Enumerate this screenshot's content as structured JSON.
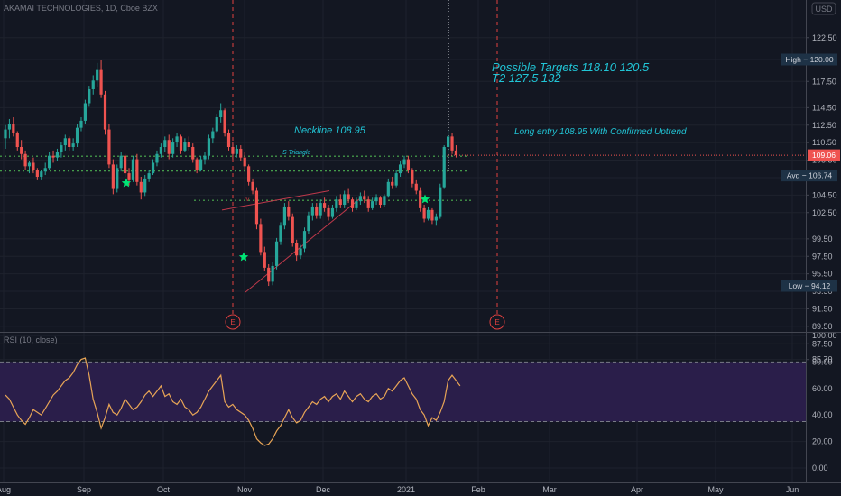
{
  "header": {
    "symbol": "AKAMAI TECHNOLOGIES, 1D, Cboe BZX",
    "currency_button": "USD"
  },
  "colors": {
    "background": "#131722",
    "grid": "#1e222d",
    "up": "#26a69a",
    "down": "#ef5350",
    "annotation": "#21c5d6",
    "dotted_line": "#4caf50",
    "star": "#00e676",
    "rsi_line": "#e8a556",
    "rsi_band": "#2a1e4a",
    "earnings": "#e04040"
  },
  "chart_data": [
    {
      "type": "candlestick",
      "y_ticks": [
        "122.50",
        "120.00",
        "117.50",
        "114.50",
        "112.50",
        "110.50",
        "108.50",
        "106.50",
        "104.50",
        "102.50",
        "99.50",
        "97.50",
        "95.50",
        "93.50",
        "91.50",
        "89.50",
        "87.50",
        "85.70"
      ],
      "x_ticks": [
        "Aug",
        "Sep",
        "Oct",
        "Nov",
        "Dec",
        "2021",
        "Feb",
        "Mar",
        "Apr",
        "May",
        "Jun"
      ],
      "ylim": [
        85.7,
        124.0
      ],
      "price_labels": {
        "high": {
          "label": "High",
          "value": "120.00"
        },
        "current": {
          "value": "109.06"
        },
        "avg": {
          "label": "Avg",
          "value": "106.74"
        },
        "low": {
          "label": "Low",
          "value": "94.12"
        }
      },
      "candles": [
        [
          111.0,
          112.5,
          109.8,
          112.0
        ],
        [
          112.0,
          113.2,
          111.0,
          112.6
        ],
        [
          112.6,
          113.4,
          111.2,
          111.6
        ],
        [
          111.6,
          111.8,
          109.6,
          110.0
        ],
        [
          110.0,
          110.8,
          108.6,
          109.2
        ],
        [
          109.2,
          109.6,
          107.4,
          107.8
        ],
        [
          107.8,
          108.4,
          107.0,
          108.2
        ],
        [
          108.2,
          108.8,
          107.0,
          107.4
        ],
        [
          107.4,
          107.6,
          106.2,
          106.6
        ],
        [
          106.6,
          107.4,
          106.2,
          107.2
        ],
        [
          107.2,
          108.2,
          106.8,
          107.6
        ],
        [
          107.6,
          109.4,
          107.4,
          109.0
        ],
        [
          109.0,
          109.6,
          108.2,
          108.8
        ],
        [
          108.8,
          109.8,
          108.4,
          109.4
        ],
        [
          109.4,
          110.6,
          108.8,
          110.2
        ],
        [
          110.2,
          111.4,
          109.6,
          111.0
        ],
        [
          111.0,
          111.2,
          109.6,
          110.0
        ],
        [
          110.0,
          111.0,
          109.6,
          110.4
        ],
        [
          110.4,
          112.6,
          110.0,
          112.2
        ],
        [
          112.2,
          113.4,
          111.8,
          113.0
        ],
        [
          113.0,
          115.4,
          112.6,
          115.0
        ],
        [
          115.0,
          117.0,
          114.6,
          116.6
        ],
        [
          116.6,
          118.2,
          116.0,
          117.6
        ],
        [
          117.6,
          119.6,
          116.8,
          118.8
        ],
        [
          118.8,
          120.0,
          115.6,
          116.0
        ],
        [
          116.0,
          116.4,
          111.4,
          112.0
        ],
        [
          112.0,
          112.6,
          107.6,
          108.0
        ],
        [
          108.0,
          108.6,
          104.6,
          105.2
        ],
        [
          105.2,
          108.0,
          104.8,
          107.6
        ],
        [
          107.6,
          109.4,
          107.2,
          109.0
        ],
        [
          109.0,
          109.2,
          106.6,
          107.0
        ],
        [
          107.0,
          107.6,
          105.6,
          106.2
        ],
        [
          106.2,
          109.0,
          106.0,
          108.6
        ],
        [
          108.6,
          109.2,
          105.6,
          106.0
        ],
        [
          106.0,
          106.6,
          104.0,
          104.8
        ],
        [
          104.8,
          106.8,
          104.4,
          106.4
        ],
        [
          106.4,
          107.4,
          106.0,
          107.0
        ],
        [
          107.0,
          108.6,
          106.8,
          108.2
        ],
        [
          108.2,
          109.6,
          107.8,
          109.2
        ],
        [
          109.2,
          110.4,
          108.8,
          110.0
        ],
        [
          110.0,
          111.2,
          109.4,
          110.8
        ],
        [
          110.8,
          111.4,
          108.6,
          109.2
        ],
        [
          109.2,
          111.0,
          108.8,
          110.6
        ],
        [
          110.6,
          111.6,
          110.0,
          111.2
        ],
        [
          111.2,
          111.4,
          109.2,
          109.6
        ],
        [
          109.6,
          111.0,
          109.4,
          110.6
        ],
        [
          110.6,
          111.2,
          109.6,
          110.0
        ],
        [
          110.0,
          110.4,
          108.2,
          108.6
        ],
        [
          108.6,
          108.8,
          107.0,
          107.4
        ],
        [
          107.4,
          109.0,
          107.2,
          108.6
        ],
        [
          108.6,
          109.4,
          108.0,
          109.0
        ],
        [
          109.0,
          111.4,
          108.6,
          111.0
        ],
        [
          111.0,
          112.2,
          110.4,
          111.8
        ],
        [
          111.8,
          113.8,
          111.6,
          113.4
        ],
        [
          113.4,
          115.0,
          112.8,
          114.2
        ],
        [
          114.2,
          114.4,
          111.2,
          111.6
        ],
        [
          111.6,
          112.0,
          109.6,
          110.0
        ],
        [
          110.0,
          110.6,
          108.6,
          109.2
        ],
        [
          109.2,
          110.2,
          108.8,
          109.8
        ],
        [
          109.8,
          110.2,
          108.4,
          108.8
        ],
        [
          108.8,
          109.4,
          107.4,
          107.8
        ],
        [
          107.8,
          108.0,
          105.6,
          106.0
        ],
        [
          106.0,
          106.4,
          104.6,
          105.0
        ],
        [
          105.0,
          105.4,
          100.6,
          101.2
        ],
        [
          101.2,
          101.8,
          97.6,
          98.0
        ],
        [
          98.0,
          98.6,
          95.8,
          96.2
        ],
        [
          96.2,
          96.6,
          94.12,
          94.6
        ],
        [
          94.6,
          96.8,
          94.2,
          96.4
        ],
        [
          96.4,
          99.6,
          96.0,
          99.2
        ],
        [
          99.2,
          101.4,
          98.8,
          101.0
        ],
        [
          101.0,
          103.6,
          100.6,
          103.2
        ],
        [
          103.2,
          103.8,
          101.6,
          102.0
        ],
        [
          102.0,
          102.4,
          98.6,
          99.0
        ],
        [
          99.0,
          99.4,
          97.0,
          97.6
        ],
        [
          97.6,
          98.8,
          97.2,
          98.4
        ],
        [
          98.4,
          100.8,
          98.0,
          100.4
        ],
        [
          100.4,
          102.6,
          100.0,
          102.2
        ],
        [
          102.2,
          103.6,
          101.6,
          103.2
        ],
        [
          103.2,
          103.6,
          101.8,
          102.2
        ],
        [
          102.2,
          104.0,
          101.8,
          103.6
        ],
        [
          103.6,
          104.2,
          102.6,
          103.0
        ],
        [
          103.0,
          103.4,
          101.6,
          102.0
        ],
        [
          102.0,
          103.4,
          101.8,
          103.0
        ],
        [
          103.0,
          104.4,
          102.6,
          104.0
        ],
        [
          104.0,
          104.6,
          103.0,
          103.4
        ],
        [
          103.4,
          105.0,
          103.0,
          104.6
        ],
        [
          104.6,
          105.2,
          103.6,
          104.0
        ],
        [
          104.0,
          104.2,
          102.6,
          103.0
        ],
        [
          103.0,
          104.2,
          102.8,
          103.8
        ],
        [
          103.8,
          104.8,
          103.4,
          104.4
        ],
        [
          104.4,
          105.0,
          103.6,
          104.0
        ],
        [
          104.0,
          104.4,
          102.6,
          103.0
        ],
        [
          103.0,
          104.2,
          102.8,
          103.8
        ],
        [
          103.8,
          104.6,
          103.4,
          104.2
        ],
        [
          104.2,
          104.4,
          103.0,
          103.4
        ],
        [
          103.4,
          104.6,
          103.2,
          104.4
        ],
        [
          104.4,
          106.4,
          104.2,
          106.0
        ],
        [
          106.0,
          106.6,
          105.2,
          105.6
        ],
        [
          105.6,
          107.4,
          105.4,
          107.0
        ],
        [
          107.0,
          108.4,
          106.6,
          108.0
        ],
        [
          108.0,
          109.0,
          107.6,
          108.6
        ],
        [
          108.6,
          109.0,
          107.0,
          107.4
        ],
        [
          107.4,
          107.6,
          105.4,
          105.8
        ],
        [
          105.8,
          106.2,
          104.6,
          105.0
        ],
        [
          105.0,
          105.4,
          102.6,
          103.0
        ],
        [
          103.0,
          103.4,
          101.4,
          101.8
        ],
        [
          101.8,
          103.2,
          101.6,
          102.8
        ],
        [
          102.8,
          103.0,
          101.2,
          101.6
        ],
        [
          101.6,
          102.4,
          101.0,
          102.0
        ],
        [
          102.0,
          105.8,
          101.8,
          105.4
        ],
        [
          105.4,
          110.2,
          105.2,
          110.0
        ],
        [
          110.0,
          112.0,
          108.4,
          111.2
        ],
        [
          111.2,
          111.6,
          109.2,
          109.6
        ],
        [
          109.6,
          110.2,
          108.8,
          109.06
        ]
      ],
      "annotations": {
        "targets_line1": "Possible Targets  118.10   120.5",
        "targets_line2": "T2  127.5  132",
        "neckline": "Neckline 108.95",
        "triangle": "S Triangle",
        "entry": "Long entry 108.95 With Confirmed Uptrend",
        "rv": "rv",
        "earnings_marker": "E"
      }
    },
    {
      "type": "line",
      "title": "RSI (10, close)",
      "y_ticks": [
        "100.00",
        "80.00",
        "60.00",
        "40.00",
        "20.00",
        "0.00"
      ],
      "ylim": [
        -6,
        100
      ],
      "bands": [
        80,
        35
      ],
      "values": [
        55,
        52,
        46,
        40,
        36,
        33,
        38,
        44,
        42,
        40,
        45,
        50,
        55,
        58,
        62,
        66,
        68,
        72,
        78,
        82,
        83,
        70,
        52,
        42,
        30,
        38,
        48,
        42,
        40,
        45,
        52,
        48,
        44,
        46,
        50,
        55,
        58,
        54,
        58,
        62,
        54,
        56,
        50,
        48,
        52,
        46,
        44,
        40,
        42,
        46,
        52,
        58,
        62,
        66,
        70,
        50,
        46,
        48,
        44,
        42,
        40,
        36,
        30,
        22,
        19,
        17,
        18,
        22,
        28,
        32,
        38,
        44,
        38,
        34,
        36,
        42,
        46,
        50,
        48,
        52,
        54,
        50,
        54,
        56,
        52,
        58,
        54,
        50,
        54,
        56,
        52,
        50,
        54,
        56,
        52,
        54,
        60,
        58,
        62,
        66,
        68,
        62,
        56,
        52,
        44,
        40,
        32,
        38,
        36,
        42,
        50,
        66,
        70,
        66,
        62
      ]
    }
  ]
}
